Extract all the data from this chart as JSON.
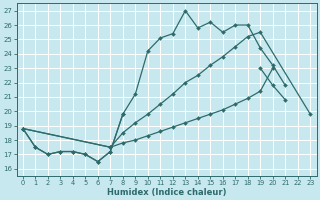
{
  "xlabel": "Humidex (Indice chaleur)",
  "xlim": [
    -0.5,
    23.5
  ],
  "ylim": [
    15.5,
    27.5
  ],
  "xticks": [
    0,
    1,
    2,
    3,
    4,
    5,
    6,
    7,
    8,
    9,
    10,
    11,
    12,
    13,
    14,
    15,
    16,
    17,
    18,
    19,
    20,
    21,
    22,
    23
  ],
  "yticks": [
    16,
    17,
    18,
    19,
    20,
    21,
    22,
    23,
    24,
    25,
    26,
    27
  ],
  "bg_color": "#c8e8f0",
  "line_color": "#2e6b6b",
  "grid_color": "#ffffff",
  "lines": [
    {
      "segments": [
        {
          "x": [
            0,
            1,
            2,
            3,
            4,
            5,
            6,
            7,
            8,
            9,
            10,
            11,
            12,
            13,
            14,
            15,
            16,
            17,
            18,
            19,
            20,
            21
          ],
          "y": [
            18.8,
            17.5,
            17.0,
            17.2,
            17.2,
            17.0,
            16.5,
            17.2,
            19.8,
            21.2,
            24.2,
            25.1,
            25.4,
            27.0,
            25.8,
            26.2,
            25.5,
            26.0,
            26.0,
            24.4,
            23.2,
            21.8
          ]
        }
      ]
    },
    {
      "segments": [
        {
          "x": [
            0,
            1,
            2,
            3,
            4,
            5,
            6,
            7,
            8
          ],
          "y": [
            18.8,
            17.5,
            17.0,
            17.2,
            17.2,
            17.0,
            16.5,
            17.2,
            19.8
          ]
        },
        {
          "x": [
            19,
            20,
            21
          ],
          "y": [
            23.0,
            21.8,
            20.8
          ]
        }
      ]
    },
    {
      "segments": [
        {
          "x": [
            0,
            7,
            8,
            9,
            10,
            11,
            12,
            13,
            14,
            15,
            16,
            17,
            18,
            19,
            20
          ],
          "y": [
            18.8,
            17.5,
            17.8,
            18.0,
            18.3,
            18.6,
            18.9,
            19.2,
            19.5,
            19.8,
            20.1,
            20.5,
            20.9,
            21.4,
            23.0
          ]
        }
      ]
    },
    {
      "segments": [
        {
          "x": [
            0,
            7,
            8,
            9,
            10,
            11,
            12,
            13,
            14,
            15,
            16,
            17,
            18,
            19,
            23
          ],
          "y": [
            18.8,
            17.5,
            18.5,
            19.2,
            19.8,
            20.5,
            21.2,
            22.0,
            22.5,
            23.2,
            23.8,
            24.5,
            25.2,
            25.5,
            19.8
          ]
        }
      ]
    }
  ]
}
